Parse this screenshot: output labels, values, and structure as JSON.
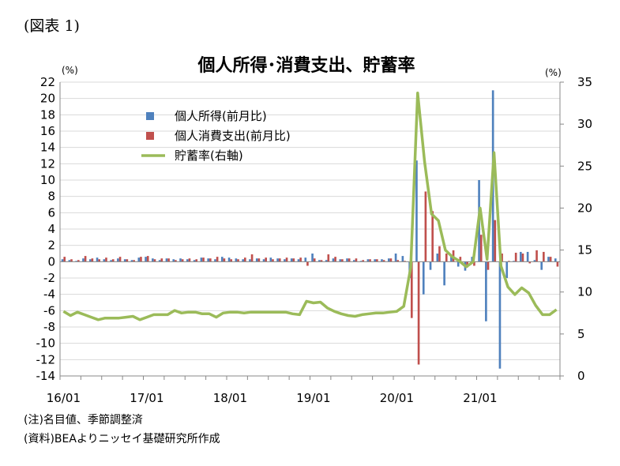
{
  "figure_label": "(図表 1)",
  "notes": [
    "(注)名目値、季節調整済",
    "(資料)BEAよりニッセイ基礎研究所作成"
  ],
  "colors": {
    "income": "#4F81BD",
    "consumption": "#C0504D",
    "saving": "#9BBB59"
  },
  "chart_data": {
    "type": "bar",
    "title": "個人所得･消費支出、貯蓄率",
    "y_unit_left": "(%)",
    "y_unit_right": "(%)",
    "ylim_left": [
      -14,
      22
    ],
    "ylim_right": [
      0,
      35
    ],
    "y_ticks_left": [
      "22",
      "20",
      "18",
      "16",
      "14",
      "12",
      "10",
      "8",
      "6",
      "4",
      "2",
      "0",
      "-2",
      "-4",
      "-6",
      "-8",
      "-10",
      "-12",
      "-14"
    ],
    "y_ticks_right": [
      "35",
      "30",
      "25",
      "20",
      "15",
      "10",
      "5",
      "0"
    ],
    "x_tick_labels": [
      "16/01",
      "17/01",
      "18/01",
      "19/01",
      "20/01",
      "21/01"
    ],
    "x_tick_index": [
      0,
      12,
      24,
      36,
      48,
      60
    ],
    "grid": true,
    "legend_position": "top-left",
    "x": [
      "16/01",
      "16/02",
      "16/03",
      "16/04",
      "16/05",
      "16/06",
      "16/07",
      "16/08",
      "16/09",
      "16/10",
      "16/11",
      "16/12",
      "17/01",
      "17/02",
      "17/03",
      "17/04",
      "17/05",
      "17/06",
      "17/07",
      "17/08",
      "17/09",
      "17/10",
      "17/11",
      "17/12",
      "18/01",
      "18/02",
      "18/03",
      "18/04",
      "18/05",
      "18/06",
      "18/07",
      "18/08",
      "18/09",
      "18/10",
      "18/11",
      "18/12",
      "19/01",
      "19/02",
      "19/03",
      "19/04",
      "19/05",
      "19/06",
      "19/07",
      "19/08",
      "19/09",
      "19/10",
      "19/11",
      "19/12",
      "20/01",
      "20/02",
      "20/03",
      "20/04",
      "20/05",
      "20/06",
      "20/07",
      "20/08",
      "20/09",
      "20/10",
      "20/11",
      "20/12",
      "21/01",
      "21/02",
      "21/03",
      "21/04",
      "21/05",
      "21/06",
      "21/07",
      "21/08",
      "21/09",
      "21/10",
      "21/11",
      "21/12"
    ],
    "series": [
      {
        "name": "個人所得(前月比)",
        "axis": "left",
        "kind": "bar",
        "values": [
          0.3,
          0.2,
          0.1,
          0.4,
          0.3,
          0.5,
          0.3,
          0.2,
          0.4,
          0.3,
          0.2,
          0.5,
          0.6,
          0.4,
          0.2,
          0.4,
          0.3,
          0.4,
          0.3,
          0.2,
          0.5,
          0.4,
          0.3,
          0.6,
          0.5,
          0.4,
          0.3,
          0.3,
          0.4,
          0.3,
          0.5,
          0.4,
          0.3,
          0.4,
          0.3,
          0.5,
          1.0,
          0.2,
          0.2,
          0.4,
          0.3,
          0.4,
          0.2,
          0.1,
          0.3,
          0.3,
          0.3,
          0.4,
          1.0,
          0.7,
          -2.0,
          12.4,
          -4.0,
          -1.0,
          1.0,
          -2.9,
          0.7,
          -0.6,
          -1.1,
          0.6,
          10.0,
          -7.3,
          21.0,
          -13.1,
          -2.0,
          0.1,
          1.2,
          1.2,
          0.2,
          -1.0,
          0.6,
          0.4
        ]
      },
      {
        "name": "個人消費支出(前月比)",
        "axis": "left",
        "kind": "bar",
        "values": [
          0.6,
          0.3,
          0.2,
          0.7,
          0.4,
          0.3,
          0.5,
          0.3,
          0.6,
          0.3,
          0.2,
          0.6,
          0.7,
          0.3,
          0.4,
          0.4,
          0.2,
          0.3,
          0.4,
          0.3,
          0.5,
          0.4,
          0.6,
          0.4,
          0.3,
          0.3,
          0.5,
          0.9,
          0.4,
          0.5,
          0.3,
          0.4,
          0.5,
          0.4,
          0.5,
          -0.5,
          0.4,
          0.2,
          0.9,
          0.6,
          0.3,
          0.4,
          0.4,
          0.2,
          0.3,
          0.3,
          0.2,
          0.4,
          0.2,
          0.1,
          -6.9,
          -12.6,
          8.6,
          6.2,
          1.9,
          1.0,
          1.4,
          0.6,
          -0.7,
          -0.5,
          3.3,
          -1.0,
          5.1,
          1.0,
          0.1,
          1.1,
          1.0,
          -0.2,
          1.4,
          1.2,
          0.6,
          -0.6
        ]
      },
      {
        "name": "貯蓄率(右軸)",
        "axis": "right",
        "kind": "line",
        "values": [
          7.7,
          7.2,
          7.6,
          7.3,
          7.0,
          6.7,
          6.9,
          6.9,
          6.9,
          7.0,
          7.1,
          6.7,
          7.0,
          7.3,
          7.3,
          7.3,
          7.8,
          7.5,
          7.6,
          7.6,
          7.4,
          7.4,
          7.0,
          7.5,
          7.6,
          7.6,
          7.5,
          7.6,
          7.6,
          7.6,
          7.6,
          7.6,
          7.6,
          7.4,
          7.3,
          8.9,
          8.7,
          8.8,
          8.1,
          7.7,
          7.4,
          7.2,
          7.1,
          7.3,
          7.4,
          7.5,
          7.5,
          7.6,
          7.7,
          8.3,
          12.9,
          33.7,
          25.5,
          19.3,
          18.5,
          15.0,
          14.2,
          13.7,
          13.0,
          13.6,
          20.0,
          13.9,
          26.6,
          13.1,
          10.6,
          9.7,
          10.5,
          9.9,
          8.4,
          7.3,
          7.3,
          7.9
        ]
      }
    ]
  }
}
